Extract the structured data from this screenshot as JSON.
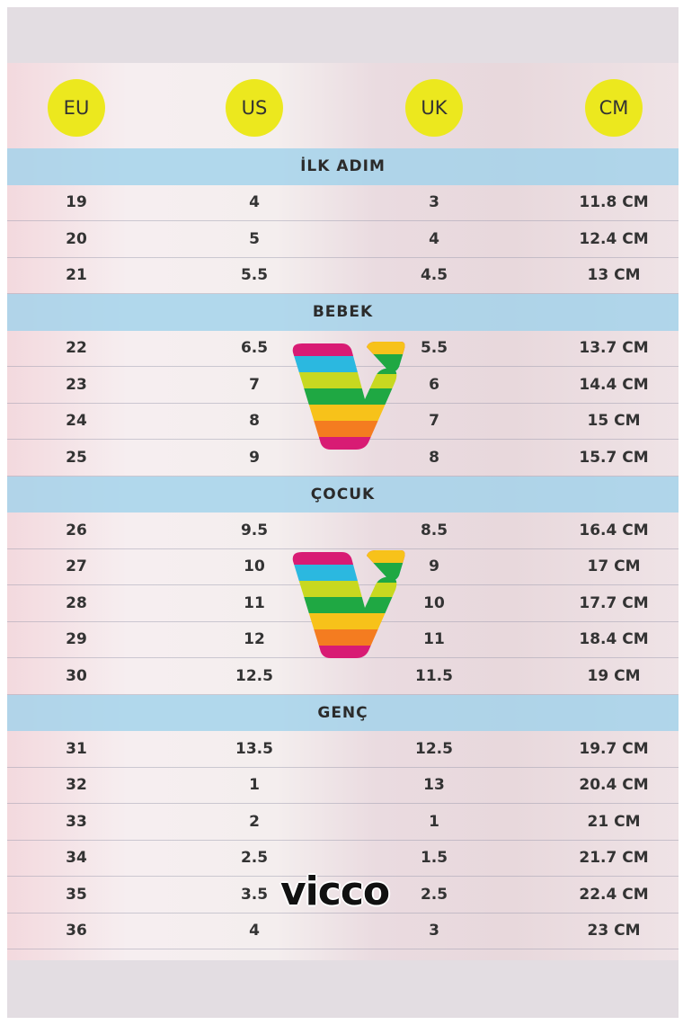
{
  "headers": [
    "EU",
    "US",
    "UK",
    "CM"
  ],
  "header_color": "#ece81e",
  "sections": [
    {
      "title": "İLK ADIM",
      "rows": [
        [
          "19",
          "4",
          "3",
          "11.8 CM"
        ],
        [
          "20",
          "5",
          "4",
          "12.4 CM"
        ],
        [
          "21",
          "5.5",
          "4.5",
          "13 CM"
        ]
      ]
    },
    {
      "title": "BEBEK",
      "rows": [
        [
          "22",
          "6.5",
          "5.5",
          "13.7 CM"
        ],
        [
          "23",
          "7",
          "6",
          "14.4 CM"
        ],
        [
          "24",
          "8",
          "7",
          "15 CM"
        ],
        [
          "25",
          "9",
          "8",
          "15.7 CM"
        ]
      ]
    },
    {
      "title": "ÇOCUK",
      "rows": [
        [
          "26",
          "9.5",
          "8.5",
          "16.4 CM"
        ],
        [
          "27",
          "10",
          "9",
          "17 CM"
        ],
        [
          "28",
          "11",
          "10",
          "17.7 CM"
        ],
        [
          "29",
          "12",
          "11",
          "18.4 CM"
        ],
        [
          "30",
          "12.5",
          "11.5",
          "19 CM"
        ]
      ]
    },
    {
      "title": "GENÇ",
      "rows": [
        [
          "31",
          "13.5",
          "12.5",
          "19.7 CM"
        ],
        [
          "32",
          "1",
          "13",
          "20.4 CM"
        ],
        [
          "33",
          "2",
          "1",
          "21 CM"
        ],
        [
          "34",
          "2.5",
          "1.5",
          "21.7 CM"
        ],
        [
          "35",
          "3.5",
          "2.5",
          "22.4 CM"
        ],
        [
          "36",
          "4",
          "3",
          "23 CM"
        ]
      ]
    }
  ],
  "brand": {
    "wordmark": "vicco",
    "logo_icon": "rainbow-v-logo",
    "stripe_colors": [
      "#d81b74",
      "#2bb8e0",
      "#c8d820",
      "#1fa843",
      "#f7c21a",
      "#f47c20"
    ]
  }
}
